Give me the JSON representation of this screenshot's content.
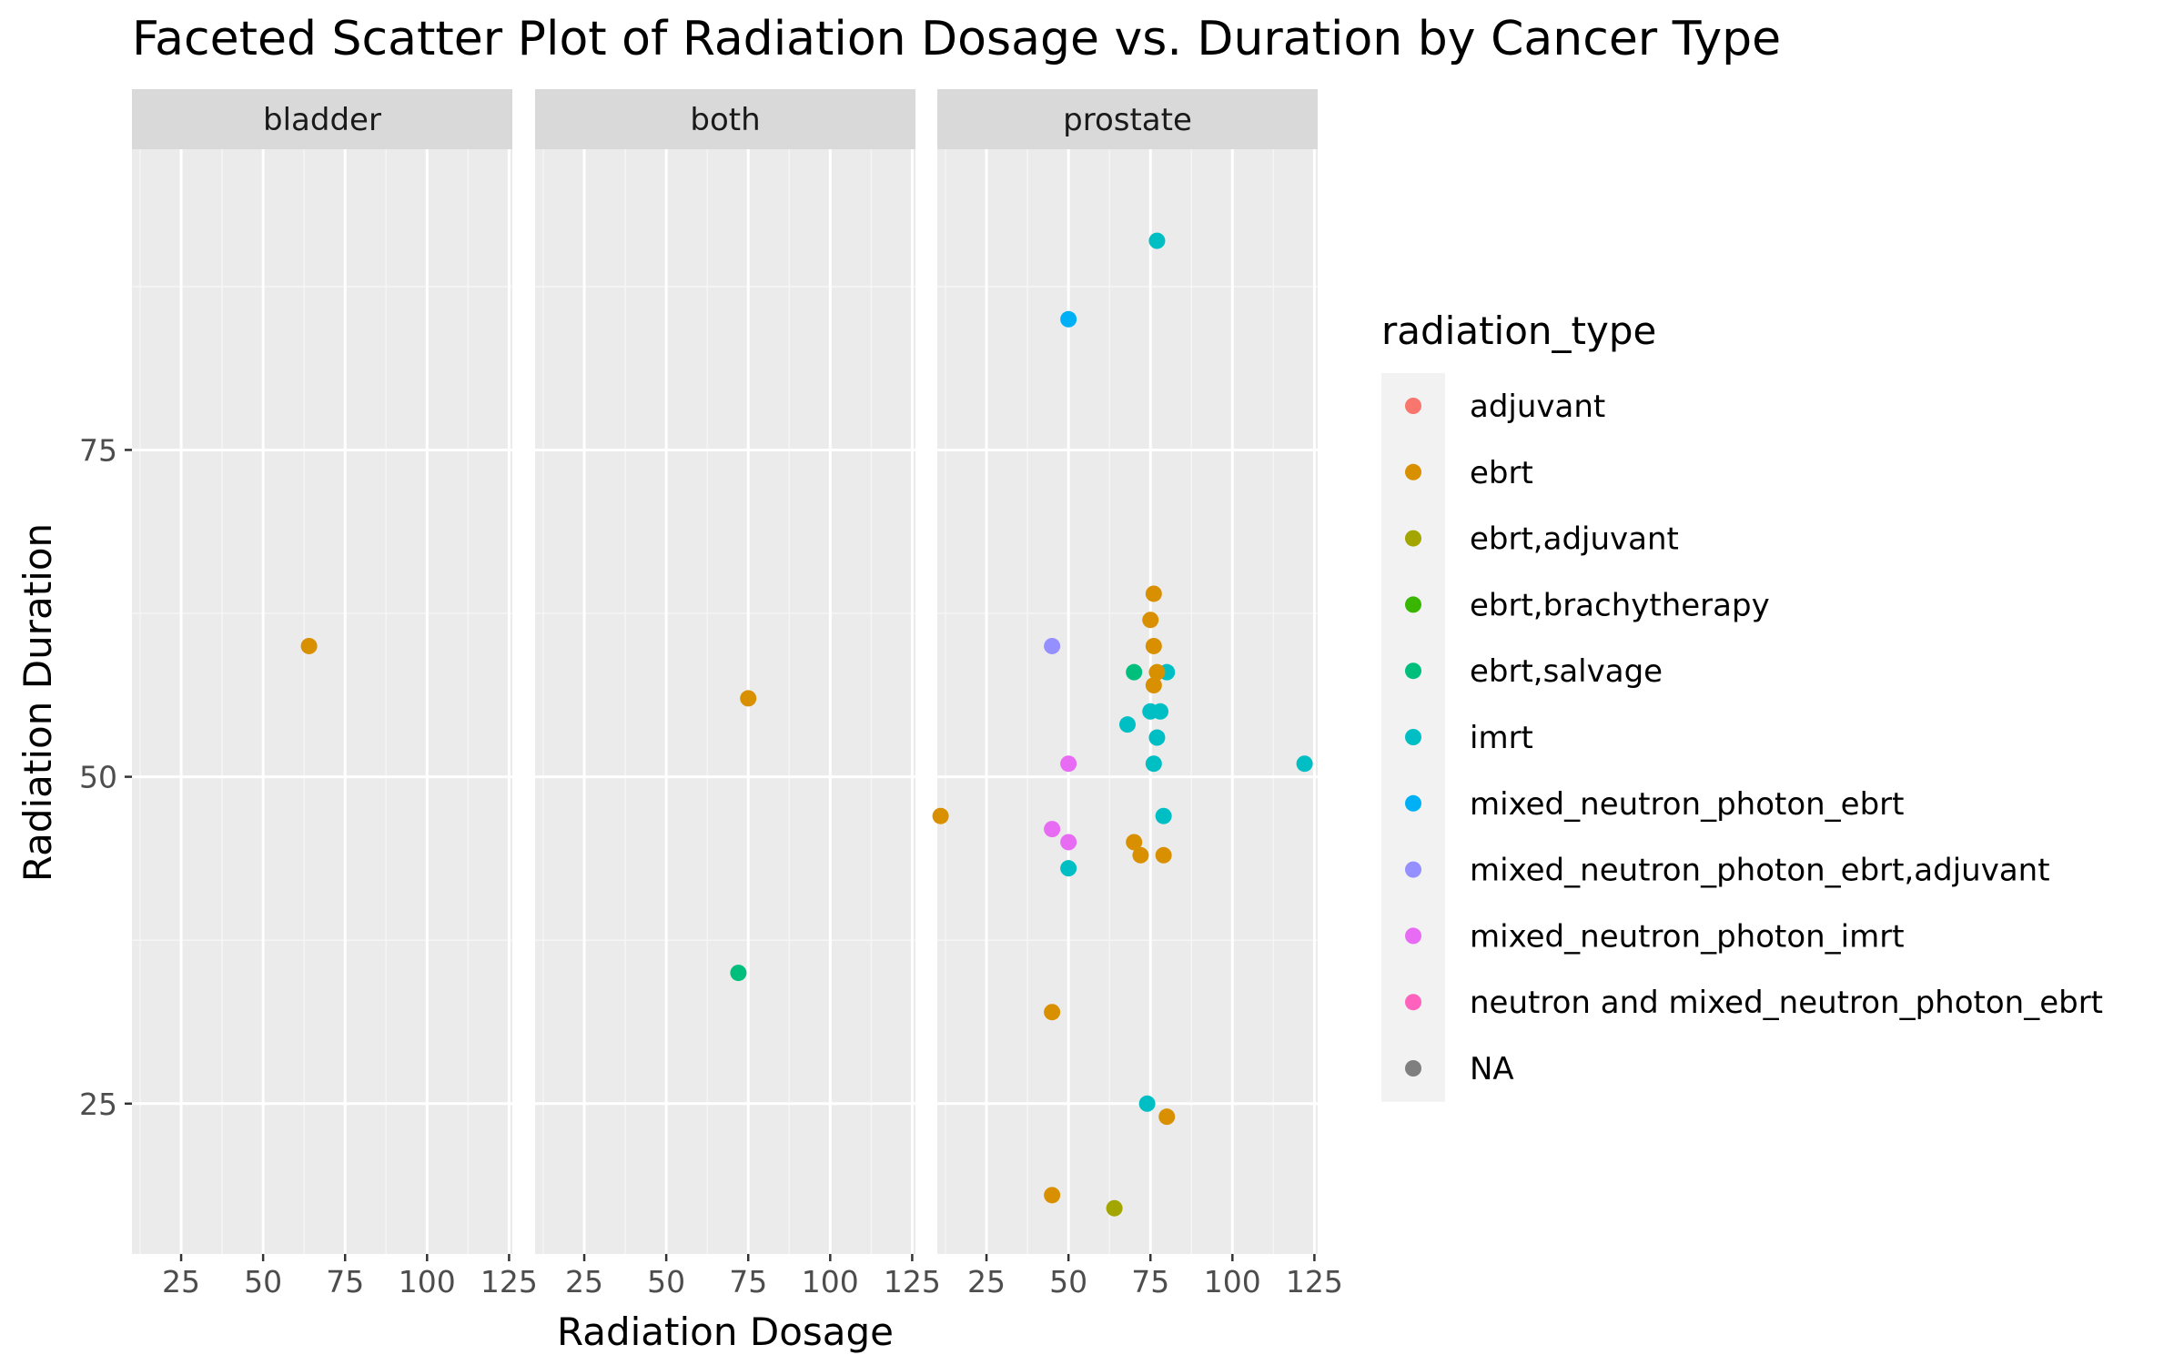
{
  "chart_data": {
    "type": "scatter",
    "title": "Faceted Scatter Plot of Radiation Dosage vs. Duration by Cancer Type",
    "xlabel": "Radiation Dosage",
    "ylabel": "Radiation Duration",
    "xlim": [
      10,
      126
    ],
    "ylim": [
      13.5,
      98
    ],
    "x_ticks": [
      25,
      50,
      75,
      100,
      125
    ],
    "y_ticks": [
      25,
      50,
      75
    ],
    "grid": true,
    "facet_by": "cancer type",
    "facets": [
      "bladder",
      "both",
      "prostate"
    ],
    "legend": {
      "title": "radiation_type",
      "placement": "right",
      "entries": [
        {
          "label": "adjuvant",
          "color": "#F8766D"
        },
        {
          "label": "ebrt",
          "color": "#D89000"
        },
        {
          "label": "ebrt,adjuvant",
          "color": "#A3A500"
        },
        {
          "label": "ebrt,brachytherapy",
          "color": "#39B600"
        },
        {
          "label": "ebrt,salvage",
          "color": "#00BF7D"
        },
        {
          "label": "imrt",
          "color": "#00BFC4"
        },
        {
          "label": "mixed_neutron_photon_ebrt",
          "color": "#00B0F6"
        },
        {
          "label": "mixed_neutron_photon_ebrt,adjuvant",
          "color": "#9590FF"
        },
        {
          "label": "mixed_neutron_photon_imrt",
          "color": "#E76BF3"
        },
        {
          "label": "neutron and mixed_neutron_photon_ebrt",
          "color": "#FF62BC"
        },
        {
          "label": "NA",
          "color": "#7F7F7F"
        }
      ]
    },
    "points": [
      {
        "facet": "bladder",
        "x": 64,
        "y": 60,
        "type": "ebrt"
      },
      {
        "facet": "both",
        "x": 75,
        "y": 56,
        "type": "ebrt"
      },
      {
        "facet": "both",
        "x": 72,
        "y": 35,
        "type": "ebrt,salvage"
      },
      {
        "facet": "prostate",
        "x": 77,
        "y": 91,
        "type": "imrt"
      },
      {
        "facet": "prostate",
        "x": 50,
        "y": 85,
        "type": "mixed_neutron_photon_ebrt"
      },
      {
        "facet": "prostate",
        "x": 76,
        "y": 64,
        "type": "ebrt"
      },
      {
        "facet": "prostate",
        "x": 75,
        "y": 62,
        "type": "ebrt"
      },
      {
        "facet": "prostate",
        "x": 76,
        "y": 60,
        "type": "ebrt"
      },
      {
        "facet": "prostate",
        "x": 45,
        "y": 60,
        "type": "mixed_neutron_photon_ebrt,adjuvant"
      },
      {
        "facet": "prostate",
        "x": 70,
        "y": 58,
        "type": "ebrt,salvage"
      },
      {
        "facet": "prostate",
        "x": 80,
        "y": 58,
        "type": "imrt"
      },
      {
        "facet": "prostate",
        "x": 77,
        "y": 58,
        "type": "ebrt"
      },
      {
        "facet": "prostate",
        "x": 76,
        "y": 57,
        "type": "ebrt"
      },
      {
        "facet": "prostate",
        "x": 75,
        "y": 55,
        "type": "imrt"
      },
      {
        "facet": "prostate",
        "x": 78,
        "y": 55,
        "type": "imrt"
      },
      {
        "facet": "prostate",
        "x": 68,
        "y": 54,
        "type": "imrt"
      },
      {
        "facet": "prostate",
        "x": 77,
        "y": 53,
        "type": "imrt"
      },
      {
        "facet": "prostate",
        "x": 76,
        "y": 51,
        "type": "imrt"
      },
      {
        "facet": "prostate",
        "x": 122,
        "y": 51,
        "type": "imrt"
      },
      {
        "facet": "prostate",
        "x": 50,
        "y": 51,
        "type": "mixed_neutron_photon_imrt"
      },
      {
        "facet": "prostate",
        "x": 79,
        "y": 47,
        "type": "imrt"
      },
      {
        "facet": "prostate",
        "x": 11,
        "y": 47,
        "type": "ebrt"
      },
      {
        "facet": "prostate",
        "x": 45,
        "y": 46,
        "type": "mixed_neutron_photon_imrt"
      },
      {
        "facet": "prostate",
        "x": 50,
        "y": 45,
        "type": "mixed_neutron_photon_imrt"
      },
      {
        "facet": "prostate",
        "x": 70,
        "y": 45,
        "type": "ebrt"
      },
      {
        "facet": "prostate",
        "x": 72,
        "y": 44,
        "type": "ebrt"
      },
      {
        "facet": "prostate",
        "x": 79,
        "y": 44,
        "type": "ebrt"
      },
      {
        "facet": "prostate",
        "x": 50,
        "y": 43,
        "type": "imrt"
      },
      {
        "facet": "prostate",
        "x": 45,
        "y": 32,
        "type": "ebrt"
      },
      {
        "facet": "prostate",
        "x": 74,
        "y": 25,
        "type": "imrt"
      },
      {
        "facet": "prostate",
        "x": 80,
        "y": 24,
        "type": "ebrt"
      },
      {
        "facet": "prostate",
        "x": 45,
        "y": 18,
        "type": "ebrt"
      },
      {
        "facet": "prostate",
        "x": 64,
        "y": 17,
        "type": "ebrt,adjuvant"
      }
    ]
  }
}
